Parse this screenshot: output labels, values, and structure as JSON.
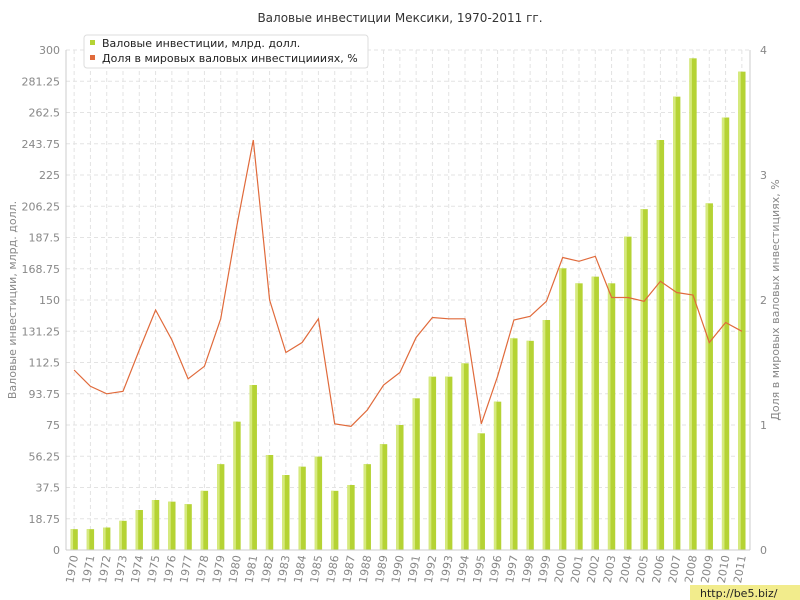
{
  "chart_data": {
    "type": "bar",
    "title": "Валовые инвестиции Мексики, 1970-2011 гг.",
    "ylabel": "Валовые инвестиции, млрд. долл.",
    "ylabel_right": "Доля в мировых валовых инвестициях, %",
    "ylim": [
      0,
      300
    ],
    "ylim_right": [
      0,
      4
    ],
    "y_ticks": [
      "0",
      "18.75",
      "37.5",
      "56.25",
      "75",
      "93.75",
      "112.5",
      "131.25",
      "150",
      "168.75",
      "187.5",
      "206.25",
      "225",
      "243.75",
      "262.5",
      "281.25",
      "300"
    ],
    "y_ticks_right": [
      "0",
      "1",
      "2",
      "3",
      "4"
    ],
    "categories": [
      "1970",
      "1971",
      "1972",
      "1973",
      "1974",
      "1975",
      "1976",
      "1977",
      "1978",
      "1979",
      "1980",
      "1981",
      "1982",
      "1983",
      "1984",
      "1985",
      "1986",
      "1987",
      "1988",
      "1989",
      "1990",
      "1991",
      "1992",
      "1993",
      "1994",
      "1995",
      "1996",
      "1997",
      "1998",
      "1999",
      "2000",
      "2001",
      "2002",
      "2003",
      "2004",
      "2005",
      "2006",
      "2007",
      "2008",
      "2009",
      "2010",
      "2011"
    ],
    "series": [
      {
        "name": "Валовые инвестиции, млрд. долл.",
        "kind": "bar",
        "axis": "left",
        "color": "#b5d334",
        "values": [
          12.5,
          12.5,
          13.5,
          17.5,
          24,
          30,
          29,
          27.5,
          35.5,
          51.5,
          77,
          99,
          57,
          45,
          50,
          56,
          35.5,
          39,
          51.5,
          63.5,
          75,
          91,
          104,
          104,
          112,
          70,
          89,
          127,
          125.5,
          138,
          169,
          160,
          164,
          160,
          188,
          204.5,
          246,
          272,
          295,
          208,
          259.5,
          287
        ]
      },
      {
        "name": "Доля в мировых валовых инвестициииях, %",
        "kind": "line",
        "axis": "right",
        "color": "#e06a3b",
        "values": [
          1.44,
          1.31,
          1.25,
          1.27,
          1.6,
          1.92,
          1.68,
          1.37,
          1.47,
          1.85,
          2.6,
          3.28,
          2.0,
          1.58,
          1.66,
          1.85,
          1.01,
          0.99,
          1.12,
          1.32,
          1.42,
          1.7,
          1.86,
          1.85,
          1.85,
          1.01,
          1.39,
          1.84,
          1.87,
          1.99,
          2.34,
          2.31,
          2.35,
          2.02,
          2.02,
          1.99,
          2.15,
          2.06,
          2.04,
          1.66,
          1.82,
          1.75
        ]
      }
    ],
    "legend_position": "top-left",
    "grid": true
  },
  "watermark": "http://be5.biz/"
}
